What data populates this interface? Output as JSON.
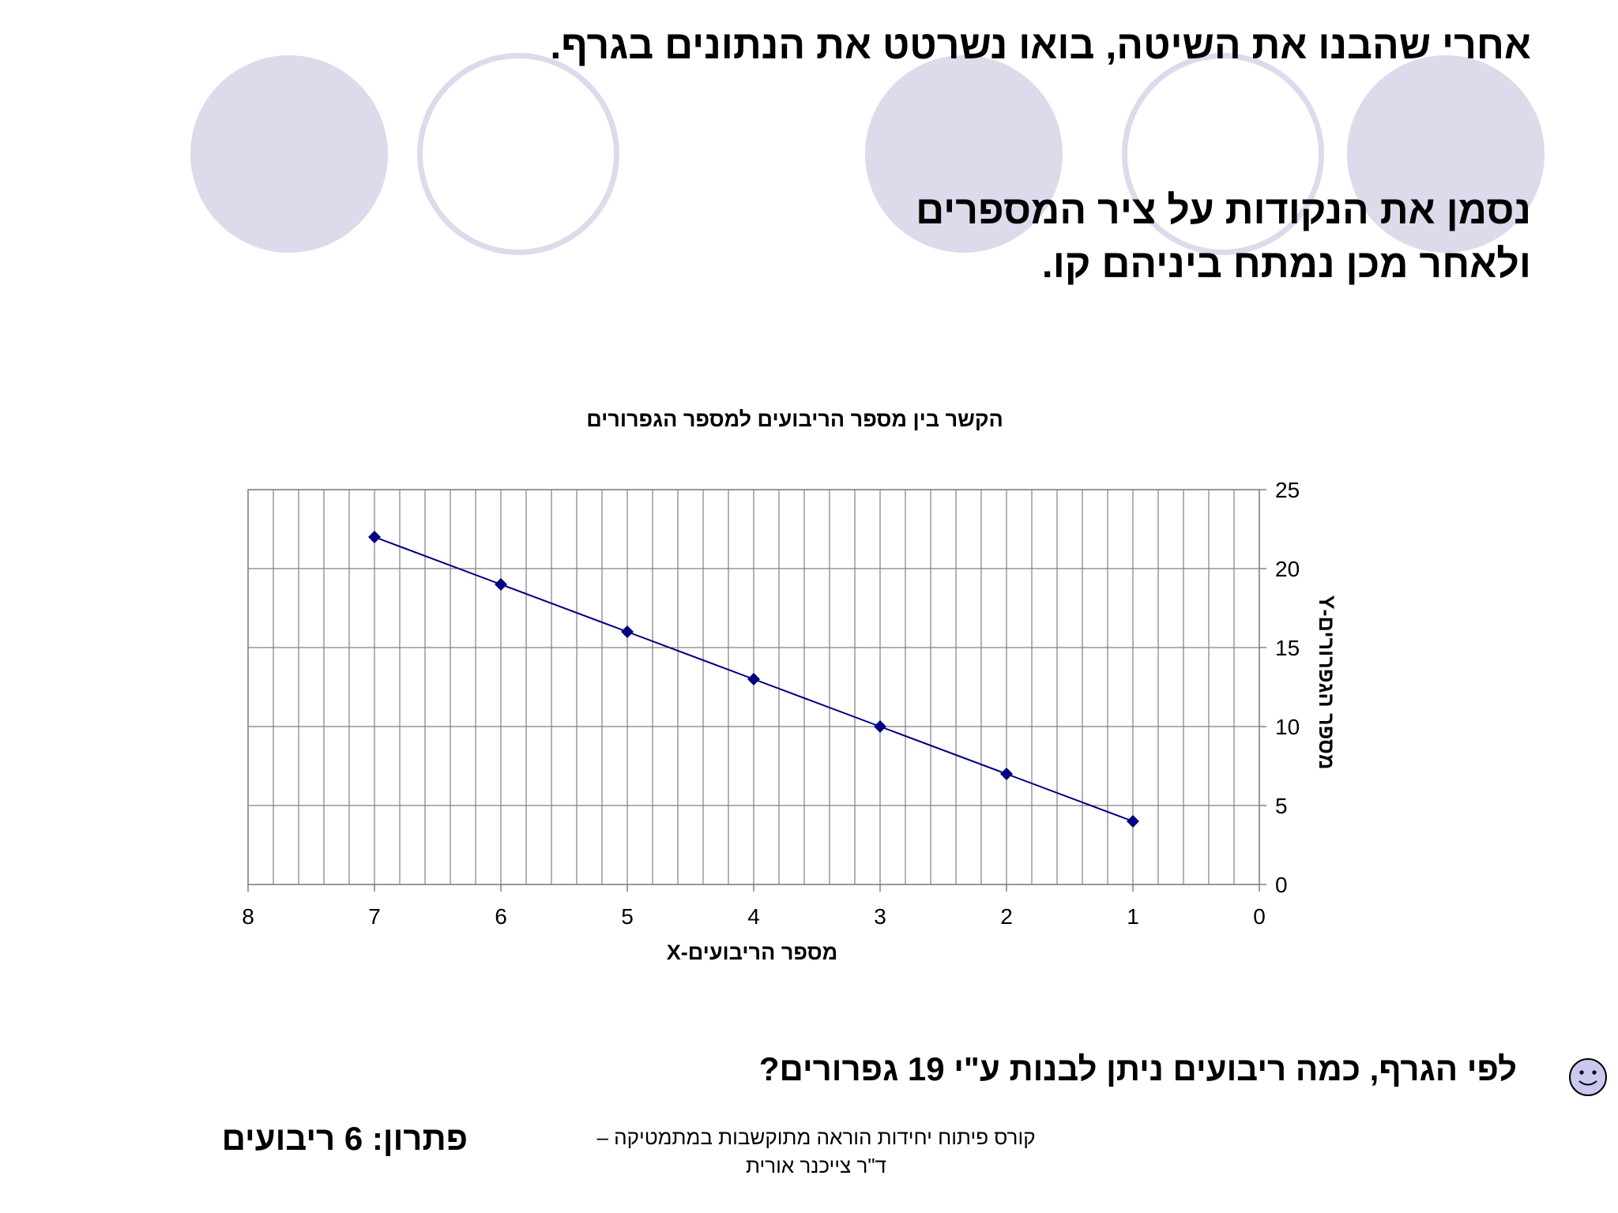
{
  "slide": {
    "title": "אחרי שהבנו את השיטה, בואו נשרטט את הנתונים בגרף.",
    "subtitle_line1": "נסמן את הנקודות על ציר המספרים",
    "subtitle_line2": "ולאחר מכן נמתח ביניהם קו.",
    "question": "לפי הגרף, כמה ריבועים ניתן לבנות ע\"י 19 גפרורים?",
    "solution": "פתרון: 6 ריבועים",
    "footer_line1": "קורס פיתוח יחידות הוראה מתוקשבות במתמטיקה –",
    "footer_line2": "ד\"ר צייכנר אורית"
  },
  "colors": {
    "accent_circles": "#dcdaeb",
    "series": "#000080",
    "grid": "#808080",
    "smiley": "#c9c9f0"
  },
  "icons": {
    "smiley": "smiley-face-icon"
  },
  "chart_data": {
    "type": "line",
    "title": "הקשר בין מספר הריבועים למספר הגפרורים",
    "xlabel": "מספר הריבועים-X",
    "ylabel": "מספר הגפרורים-Y",
    "x": [
      7,
      6,
      5,
      4,
      3,
      2,
      1
    ],
    "y": [
      22,
      19,
      16,
      13,
      10,
      7,
      4
    ],
    "xlim": [
      0,
      8
    ],
    "ylim": [
      0,
      25
    ],
    "x_reversed": true,
    "y_axis_position": "right",
    "x_ticks": [
      8,
      7,
      6,
      5,
      4,
      3,
      2,
      1,
      0
    ],
    "y_ticks": [
      0,
      5,
      10,
      15,
      20,
      25
    ],
    "grid": true,
    "marker": "diamond",
    "legend": "none"
  }
}
